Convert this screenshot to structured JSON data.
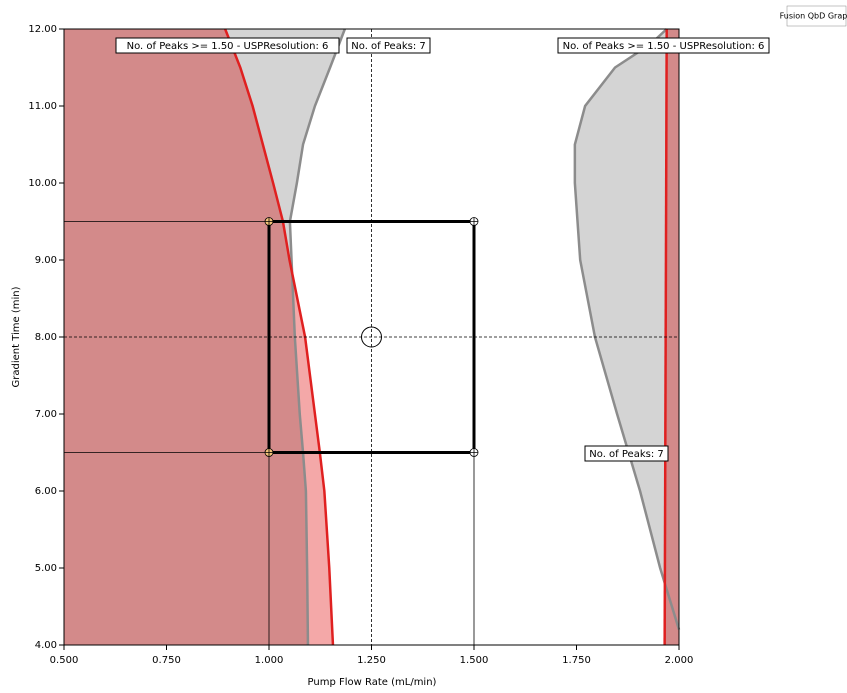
{
  "chart_data": {
    "type": "region",
    "corner_label": "Fusion QbD Graph",
    "xlabel": "Pump Flow Rate (mL/min)",
    "ylabel": "Gradient Time (min)",
    "xlim": [
      0.5,
      2.0
    ],
    "ylim": [
      4.0,
      12.0
    ],
    "xticks": [
      {
        "value": 0.5,
        "label": "0.500"
      },
      {
        "value": 0.75,
        "label": "0.750"
      },
      {
        "value": 1.0,
        "label": "1.000"
      },
      {
        "value": 1.25,
        "label": "1.250"
      },
      {
        "value": 1.5,
        "label": "1.500"
      },
      {
        "value": 1.75,
        "label": "1.750"
      },
      {
        "value": 2.0,
        "label": "2.000"
      }
    ],
    "yticks": [
      {
        "value": 4,
        "label": "4.00"
      },
      {
        "value": 5,
        "label": "5.00"
      },
      {
        "value": 6,
        "label": "6.00"
      },
      {
        "value": 7,
        "label": "7.00"
      },
      {
        "value": 8,
        "label": "8.00"
      },
      {
        "value": 9,
        "label": "9.00"
      },
      {
        "value": 10,
        "label": "10.00"
      },
      {
        "value": 11,
        "label": "11.00"
      },
      {
        "value": 12,
        "label": "12.00"
      }
    ],
    "series": [
      {
        "color": "#8c8c8c",
        "fill": "#d4d4d4",
        "fill_to": "left",
        "y": [
          4,
          5,
          6,
          6.5,
          7,
          8,
          9,
          9.5,
          10,
          10.5,
          11,
          11.5,
          12
        ],
        "x": [
          1.095,
          1.093,
          1.09,
          1.083,
          1.075,
          1.063,
          1.055,
          1.051,
          1.068,
          1.083,
          1.112,
          1.149,
          1.185
        ]
      },
      {
        "color": "#e02020",
        "fill": "#f4a8a8",
        "fill_to": "left",
        "y": [
          4,
          5,
          6,
          6.5,
          7,
          8,
          9,
          9.5,
          10,
          10.5,
          11,
          11.5,
          12
        ],
        "x": [
          1.156,
          1.147,
          1.135,
          1.124,
          1.112,
          1.088,
          1.05,
          1.034,
          1.01,
          0.985,
          0.96,
          0.93,
          0.893
        ]
      },
      {
        "color": "#8c8c8c",
        "fill": "#d4d4d4",
        "fill_to": "right",
        "y": [
          4.2,
          5,
          6,
          7,
          8,
          9,
          10,
          10.5,
          11,
          11.5,
          11.8,
          12
        ],
        "x": [
          2.0,
          1.954,
          1.905,
          1.849,
          1.795,
          1.759,
          1.746,
          1.746,
          1.771,
          1.844,
          1.93,
          1.97
        ]
      },
      {
        "color": "#e02020",
        "fill": "#d38a8a",
        "fill_to": "right",
        "y": [
          4,
          12
        ],
        "x": [
          1.965,
          1.97
        ]
      }
    ],
    "overlap_fill": "#d38a8a",
    "design_space": {
      "x": [
        1.0,
        1.5
      ],
      "y": [
        6.5,
        9.5
      ]
    },
    "setpoint": {
      "x": 1.25,
      "y": 8.0
    },
    "annotations": [
      "No. of Peaks >= 1.50 - USPResolution: 6",
      "No. of Peaks: 7",
      "No. of Peaks >= 1.50 - USPResolution: 6",
      "No. of Peaks: 7"
    ]
  }
}
